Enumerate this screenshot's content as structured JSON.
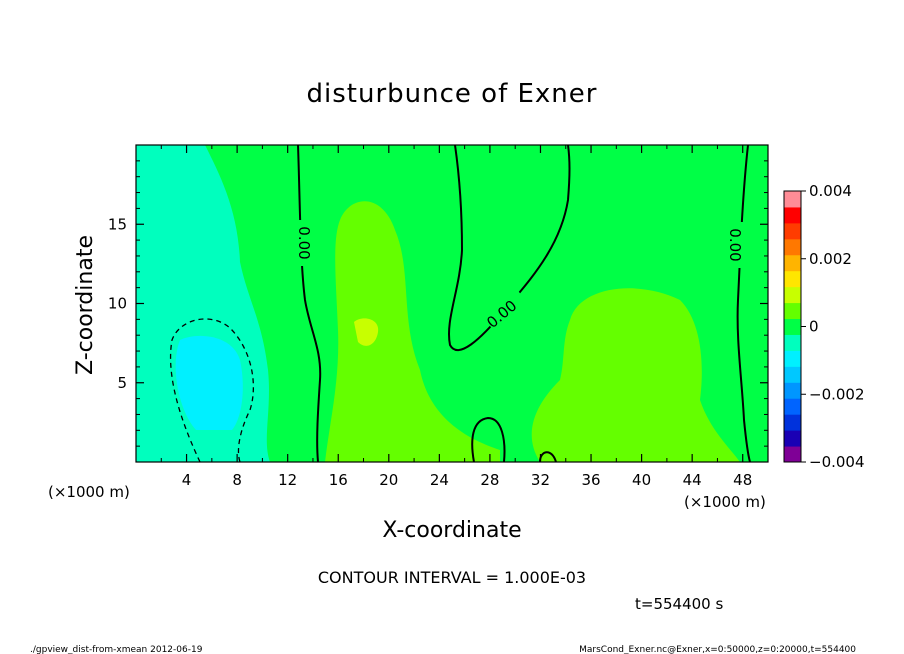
{
  "chart_data": {
    "type": "contour",
    "title": "disturbunce of Exner",
    "xlabel": "X-coordinate",
    "ylabel": "Z-coordinate",
    "x_unit": "(×1000 m)",
    "y_unit": "(×1000 m)",
    "xlim": [
      0,
      50
    ],
    "ylim": [
      0,
      20
    ],
    "x_ticks": [
      "4",
      "8",
      "12",
      "16",
      "20",
      "24",
      "28",
      "32",
      "36",
      "40",
      "44",
      "48"
    ],
    "y_ticks": [
      "5",
      "10",
      "15"
    ],
    "contour_labels": [
      "0.00",
      "0.00",
      "0.00"
    ],
    "colorbar": {
      "min": -0.004,
      "max": 0.004,
      "step": 0.0005,
      "tick_labels": [
        "0.004",
        "0.002",
        "0",
        "−0.002",
        "−0.004"
      ],
      "tick_values": [
        0.004,
        0.002,
        0,
        -0.002,
        -0.004
      ],
      "colors": [
        "#7f0096",
        "#1a00b4",
        "#0032dc",
        "#0064ff",
        "#0096ff",
        "#00c8ff",
        "#00f0ff",
        "#00ffbe",
        "#00ff46",
        "#64ff00",
        "#c8ff00",
        "#ffe600",
        "#ffb400",
        "#ff7800",
        "#ff3c00",
        "#ff0000",
        "#ff8c96"
      ]
    },
    "contour_interval_text": "CONTOUR INTERVAL = 1.000E-03",
    "time_text": "t=554400 s",
    "footer_left": "./gpview_dist-from-xmean   2012-06-19",
    "footer_right": "MarsCond_Exner.nc@Exner,x=0:50000,z=0:20000,t=554400"
  }
}
